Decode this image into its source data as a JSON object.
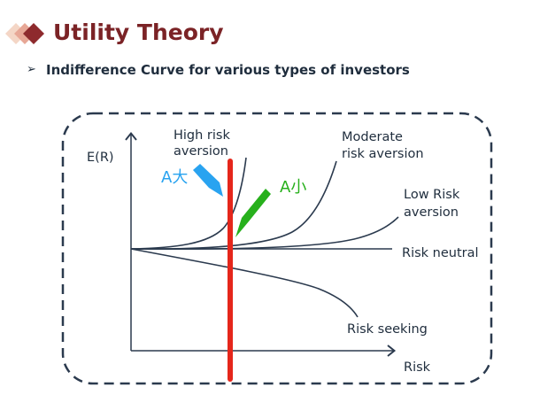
{
  "header": {
    "title": "Utility Theory",
    "bullet_icon": "arrowhead-bullet-icon",
    "subtitle": "Indifference Curve for various types of investors"
  },
  "diagram": {
    "y_axis_label": "E(R)",
    "x_axis_label": "Risk",
    "curves": {
      "high_risk_aversion": [
        "High risk",
        "aversion"
      ],
      "moderate_risk_aversion": [
        "Moderate",
        "risk aversion"
      ],
      "low_risk_aversion": [
        "Low Risk",
        "aversion"
      ],
      "risk_neutral": "Risk neutral",
      "risk_seeking": "Risk seeking"
    },
    "annotations": {
      "large": "A大",
      "small": "A小"
    },
    "colors": {
      "title": "#7b2326",
      "curve": "#2b3a4e",
      "frame": "#2b3a4e",
      "red_line": "#e5261b",
      "blue_arrow": "#29a3f0",
      "green_arrow": "#27b01c"
    }
  }
}
